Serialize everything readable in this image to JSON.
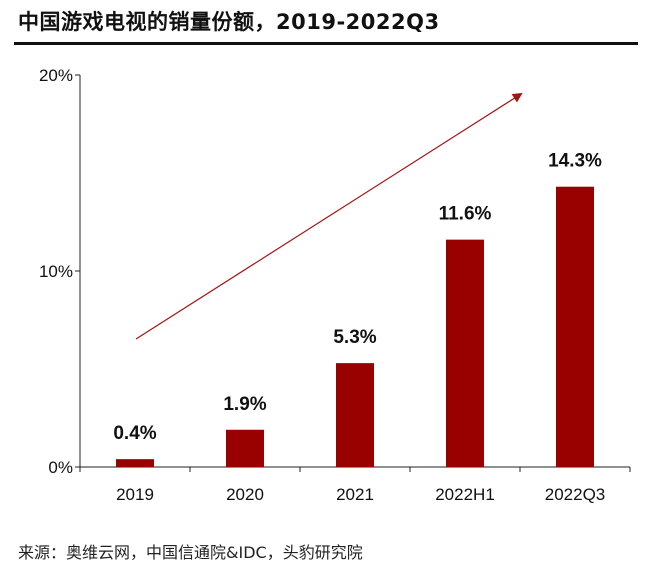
{
  "title": "中国游戏电视的销量份额，2019-2022Q3",
  "source": "来源：奥维云网，中国信通院&IDC，头豹研究院",
  "colors": {
    "bar": "#990000",
    "arrow": "#a31515",
    "axis": "#222222",
    "text": "#111111"
  },
  "chart_data": {
    "type": "bar",
    "title": "中国游戏电视的销量份额，2019-2022Q3",
    "categories": [
      "2019",
      "2020",
      "2021",
      "2022H1",
      "2022Q3"
    ],
    "values": [
      0.4,
      1.9,
      5.3,
      11.6,
      14.3
    ],
    "value_labels": [
      "0.4%",
      "1.9%",
      "5.3%",
      "11.6%",
      "14.3%"
    ],
    "ylim": [
      0,
      20
    ],
    "yticks": [
      0,
      10,
      20
    ],
    "ytick_labels": [
      "0%",
      "10%",
      "20%"
    ],
    "xlabel": "",
    "ylabel": "",
    "grid": false,
    "annotations": [
      {
        "type": "trend-arrow",
        "description": "upward trend"
      }
    ]
  }
}
